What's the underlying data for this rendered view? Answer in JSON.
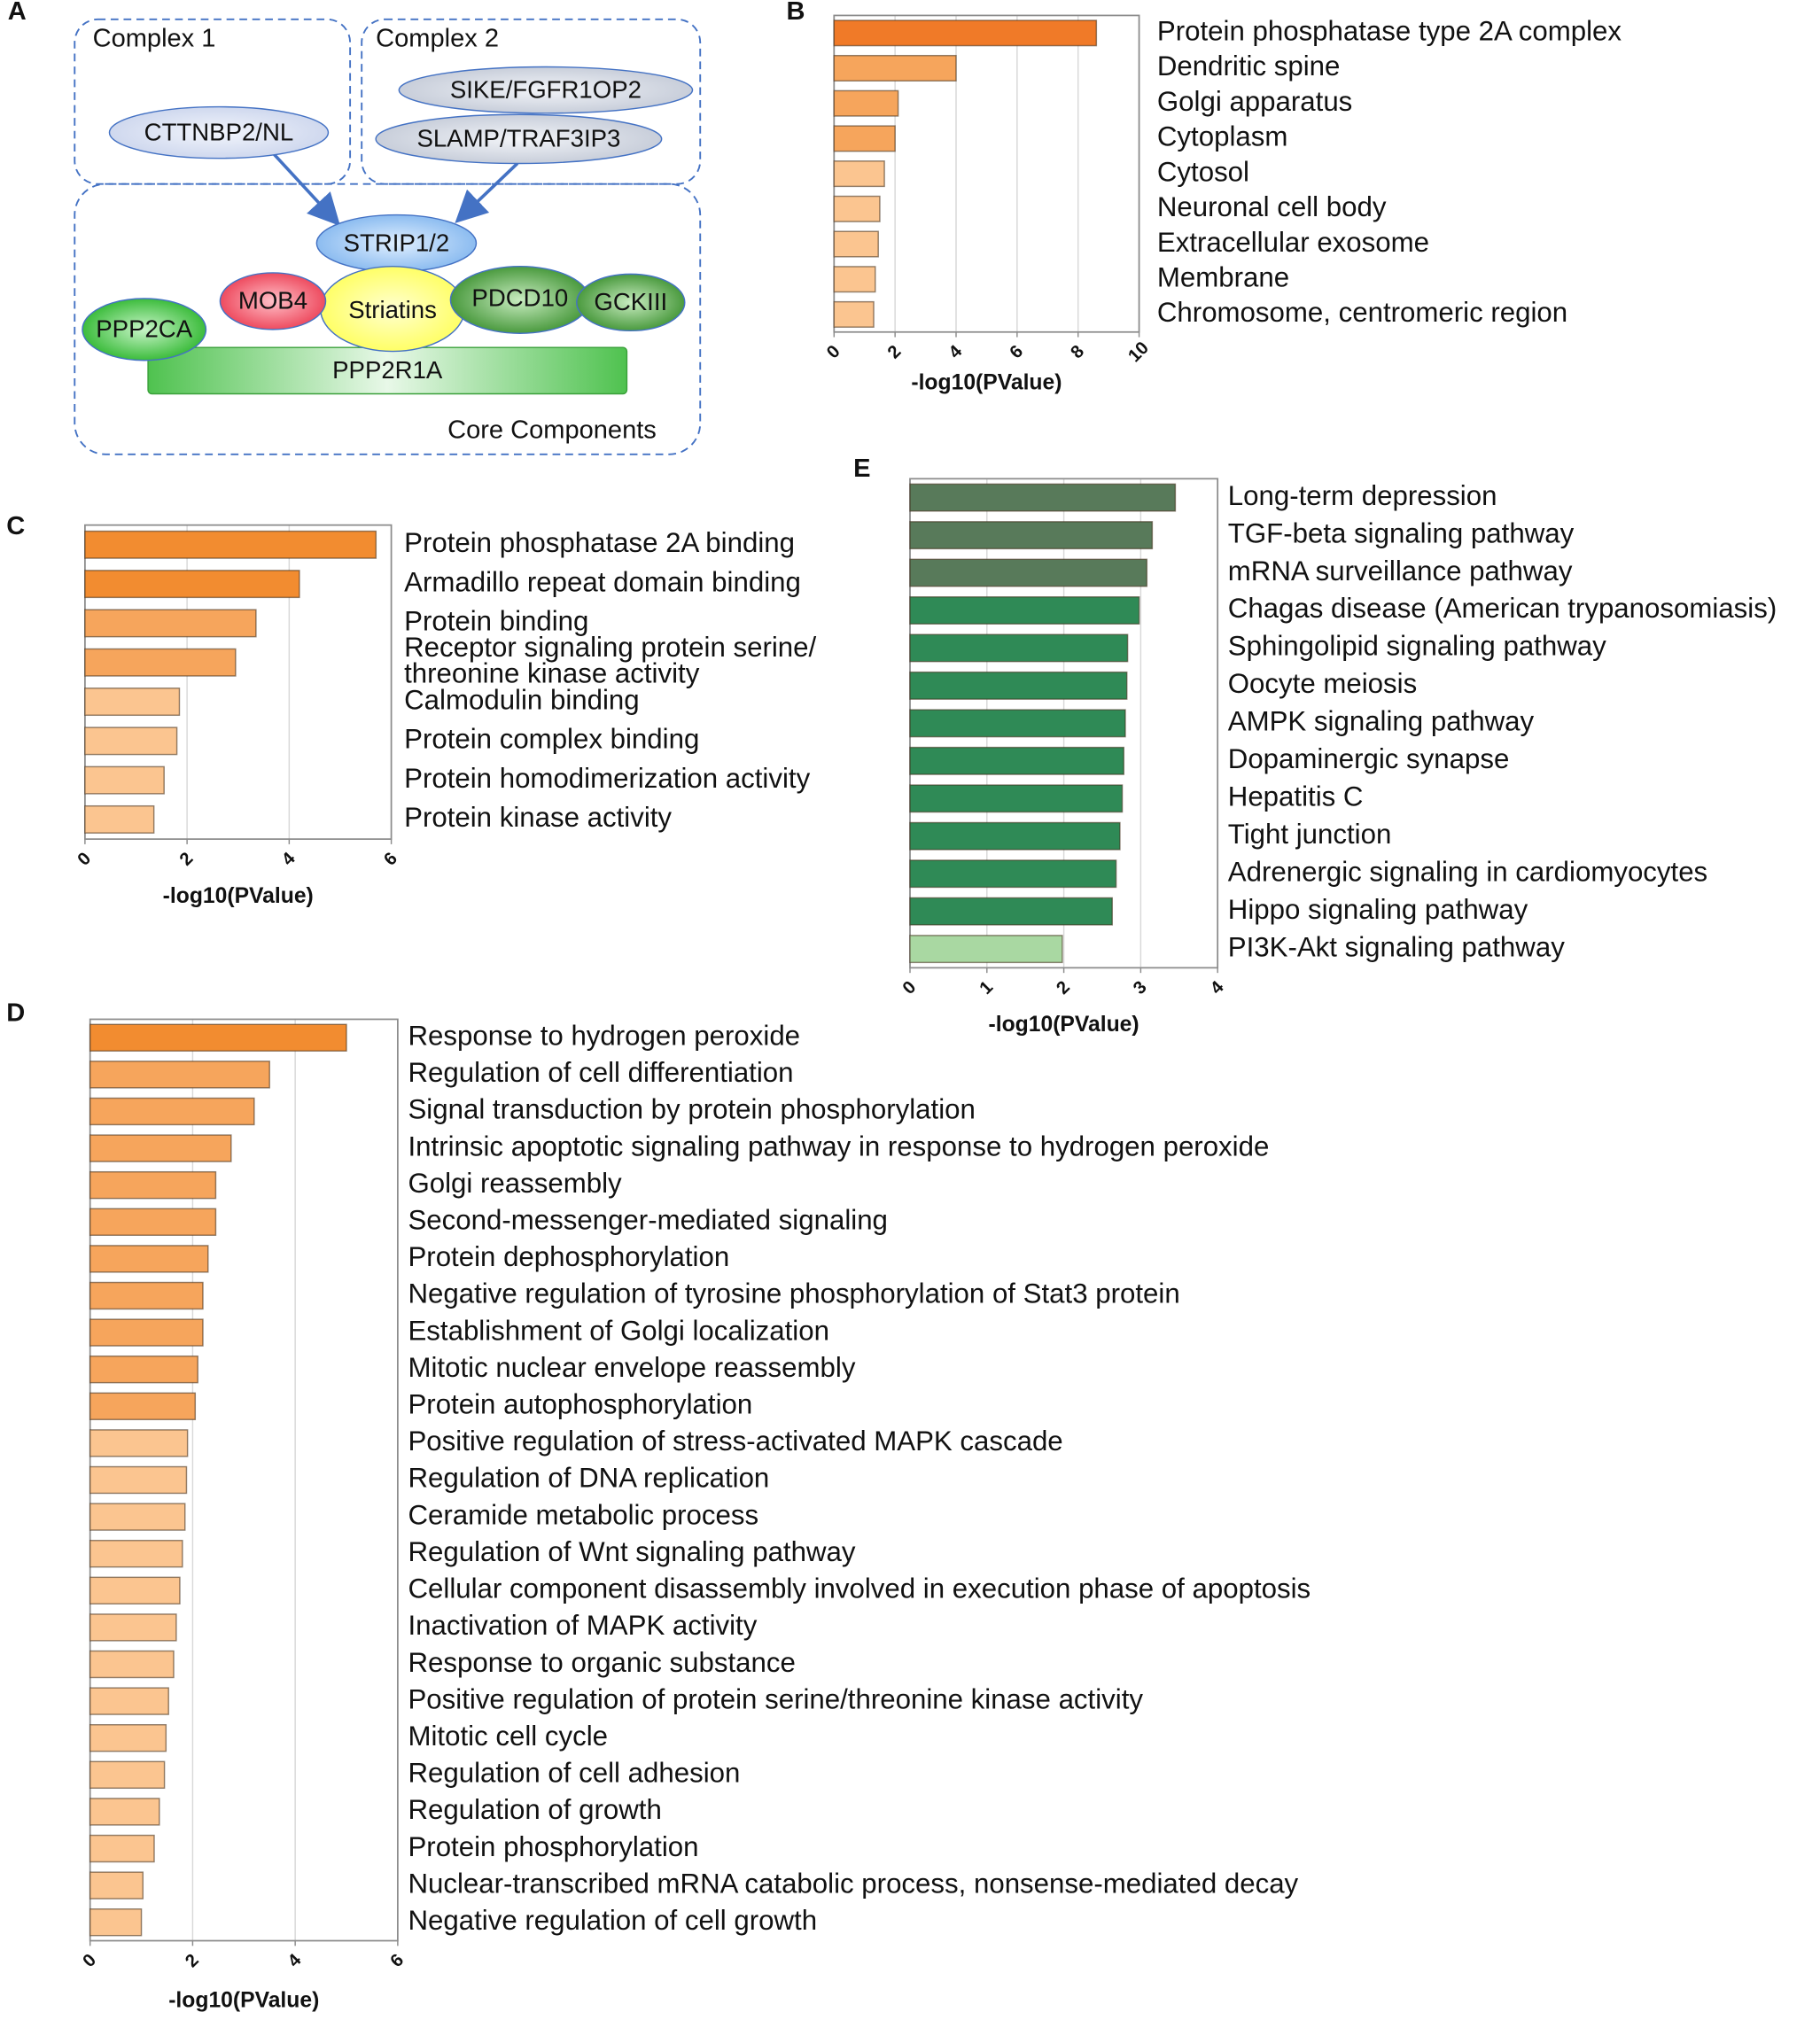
{
  "diagram": {
    "panel": "A",
    "groups": [
      "Complex 1",
      "Complex 2",
      "Core Components"
    ],
    "nodes": [
      "CTTNBP2/NL",
      "SIKE/FGFR1OP2",
      "SLAMP/TRAF3IP3",
      "STRIP1/2",
      "MOB4",
      "Striatins",
      "PDCD10",
      "GCKIII",
      "PPP2CA",
      "PPP2R1A"
    ]
  },
  "chart_data": [
    {
      "type": "bar",
      "orientation": "horizontal",
      "panel": "B",
      "categories": [
        "Protein phosphatase type 2A complex",
        "Dendritic spine",
        "Golgi apparatus",
        "Cytoplasm",
        "Cytosol",
        "Neuronal cell body",
        "Extracellular exosome",
        "Membrane",
        "Chromosome, centromeric region"
      ],
      "values": [
        8.6,
        4.0,
        2.1,
        2.0,
        1.65,
        1.5,
        1.45,
        1.35,
        1.3
      ],
      "colors": [
        "#f07a28",
        "#f6a55c",
        "#f6a55c",
        "#f6a55c",
        "#fbc590",
        "#fbc590",
        "#fbc590",
        "#fbc590",
        "#fbc590"
      ],
      "xlabel": "-log10(PValue)",
      "xlim": [
        0,
        10
      ],
      "xticks": [
        0,
        2,
        4,
        6,
        8,
        10
      ],
      "grid": true
    },
    {
      "type": "bar",
      "orientation": "horizontal",
      "panel": "C",
      "categories": [
        "Protein phosphatase 2A binding",
        "Armadillo repeat domain binding",
        "Protein binding",
        "Receptor signaling protein serine/\nthreonine kinase activity",
        "Calmodulin binding",
        "Protein complex binding",
        "Protein homodimerization activity",
        "Protein kinase activity"
      ],
      "values": [
        5.7,
        4.2,
        3.35,
        2.95,
        1.85,
        1.8,
        1.55,
        1.35
      ],
      "colors": [
        "#f28c30",
        "#f28c30",
        "#f6a55c",
        "#f6a55c",
        "#fbc590",
        "#fbc590",
        "#fbc590",
        "#fbc590"
      ],
      "xlabel": "-log10(PValue)",
      "xlim": [
        0,
        6
      ],
      "xticks": [
        0,
        2,
        4,
        6
      ],
      "grid": true
    },
    {
      "type": "bar",
      "orientation": "horizontal",
      "panel": "D",
      "categories": [
        "Response to hydrogen peroxide",
        "Regulation of cell differentiation",
        "Signal transduction by protein phosphorylation",
        "Intrinsic apoptotic signaling pathway in response to hydrogen peroxide",
        "Golgi reassembly",
        "Second-messenger-mediated signaling",
        "Protein dephosphorylation",
        "Negative regulation of tyrosine phosphorylation of Stat3 protein",
        "Establishment of Golgi localization",
        "Mitotic nuclear envelope reassembly",
        "Protein autophosphorylation",
        "Positive regulation of stress-activated MAPK cascade",
        "Regulation of DNA replication",
        "Ceramide metabolic process",
        "Regulation of Wnt signaling pathway",
        "Cellular component disassembly involved in execution phase of apoptosis",
        "Inactivation of MAPK activity",
        "Response to organic substance",
        "Positive regulation of protein serine/threonine kinase activity",
        "Mitotic cell cycle",
        "Regulation of cell adhesion",
        "Regulation of growth",
        "Protein phosphorylation",
        "Nuclear-transcribed mRNA catabolic process, nonsense-mediated decay",
        "Negative regulation of cell growth"
      ],
      "values": [
        5.0,
        3.5,
        3.2,
        2.75,
        2.45,
        2.45,
        2.3,
        2.2,
        2.2,
        2.1,
        2.05,
        1.9,
        1.88,
        1.85,
        1.8,
        1.75,
        1.68,
        1.63,
        1.53,
        1.48,
        1.45,
        1.35,
        1.25,
        1.03,
        1.0
      ],
      "colors": [
        "#f28c30",
        "#f6a55c",
        "#f6a55c",
        "#f6a55c",
        "#f6a55c",
        "#f6a55c",
        "#f6a55c",
        "#f6a55c",
        "#f6a55c",
        "#f6a55c",
        "#f6a55c",
        "#fbc590",
        "#fbc590",
        "#fbc590",
        "#fbc590",
        "#fbc590",
        "#fbc590",
        "#fbc590",
        "#fbc590",
        "#fbc590",
        "#fbc590",
        "#fbc590",
        "#fbc590",
        "#fbc590",
        "#fbc590"
      ],
      "xlabel": "-log10(PValue)",
      "xlim": [
        0,
        6
      ],
      "xticks": [
        0,
        2,
        4,
        6
      ],
      "grid": true
    },
    {
      "type": "bar",
      "orientation": "horizontal",
      "panel": "E",
      "categories": [
        "Long-term depression",
        "TGF-beta signaling pathway",
        "mRNA surveillance pathway",
        "Chagas disease (American trypanosomiasis)",
        "Sphingolipid signaling pathway",
        "Oocyte meiosis",
        "AMPK signaling pathway",
        "Dopaminergic synapse",
        "Hepatitis C",
        "Tight junction",
        "Adrenergic signaling in cardiomyocytes",
        "Hippo signaling pathway",
        "PI3K-Akt signaling pathway"
      ],
      "values": [
        3.45,
        3.15,
        3.08,
        2.98,
        2.83,
        2.82,
        2.8,
        2.78,
        2.76,
        2.73,
        2.68,
        2.63,
        1.98
      ],
      "colors": [
        "#587a5a",
        "#587a5a",
        "#587a5a",
        "#2f8a56",
        "#2f8a56",
        "#2f8a56",
        "#2f8a56",
        "#2f8a56",
        "#2f8a56",
        "#2f8a56",
        "#2f8a56",
        "#2f8a56",
        "#a9d8a2"
      ],
      "xlabel": "-log10(PValue)",
      "xlim": [
        0,
        4
      ],
      "xticks": [
        0,
        1,
        2,
        3,
        4
      ],
      "grid": true
    }
  ]
}
